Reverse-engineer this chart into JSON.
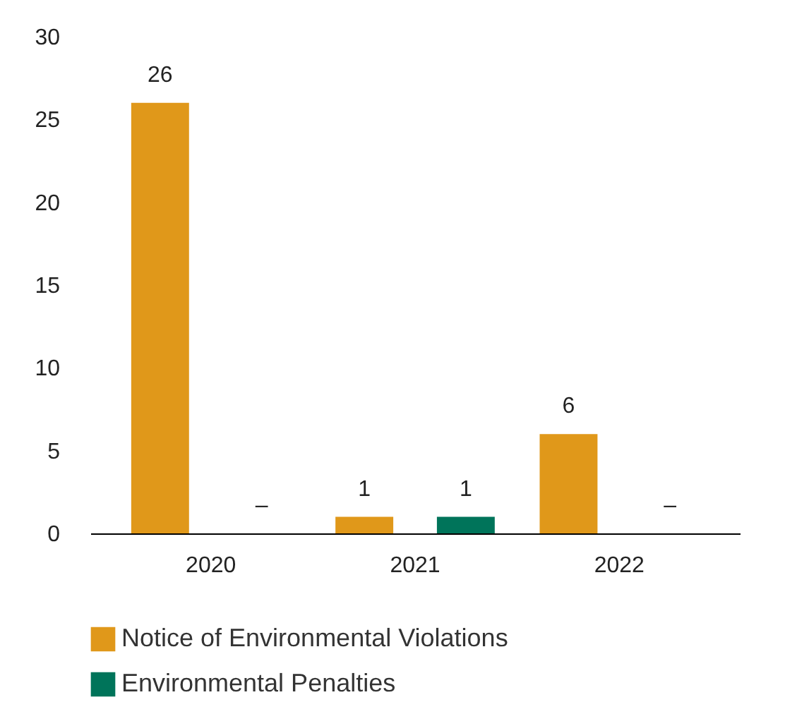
{
  "chart_data": {
    "type": "bar",
    "categories": [
      "2020",
      "2021",
      "2022"
    ],
    "series": [
      {
        "name": "Notice of Environmental Violations",
        "color": "#e0981a",
        "values": [
          26,
          1,
          6
        ],
        "value_labels": [
          "26",
          "1",
          "6"
        ]
      },
      {
        "name": "Environmental Penalties",
        "color": "#00745a",
        "values": [
          null,
          1,
          null
        ],
        "value_labels": [
          "–",
          "1",
          "–"
        ]
      }
    ],
    "ylim": [
      0,
      30
    ],
    "yticks": [
      0,
      5,
      10,
      15,
      20,
      25,
      30
    ],
    "grid": false,
    "legend": "bottom"
  }
}
